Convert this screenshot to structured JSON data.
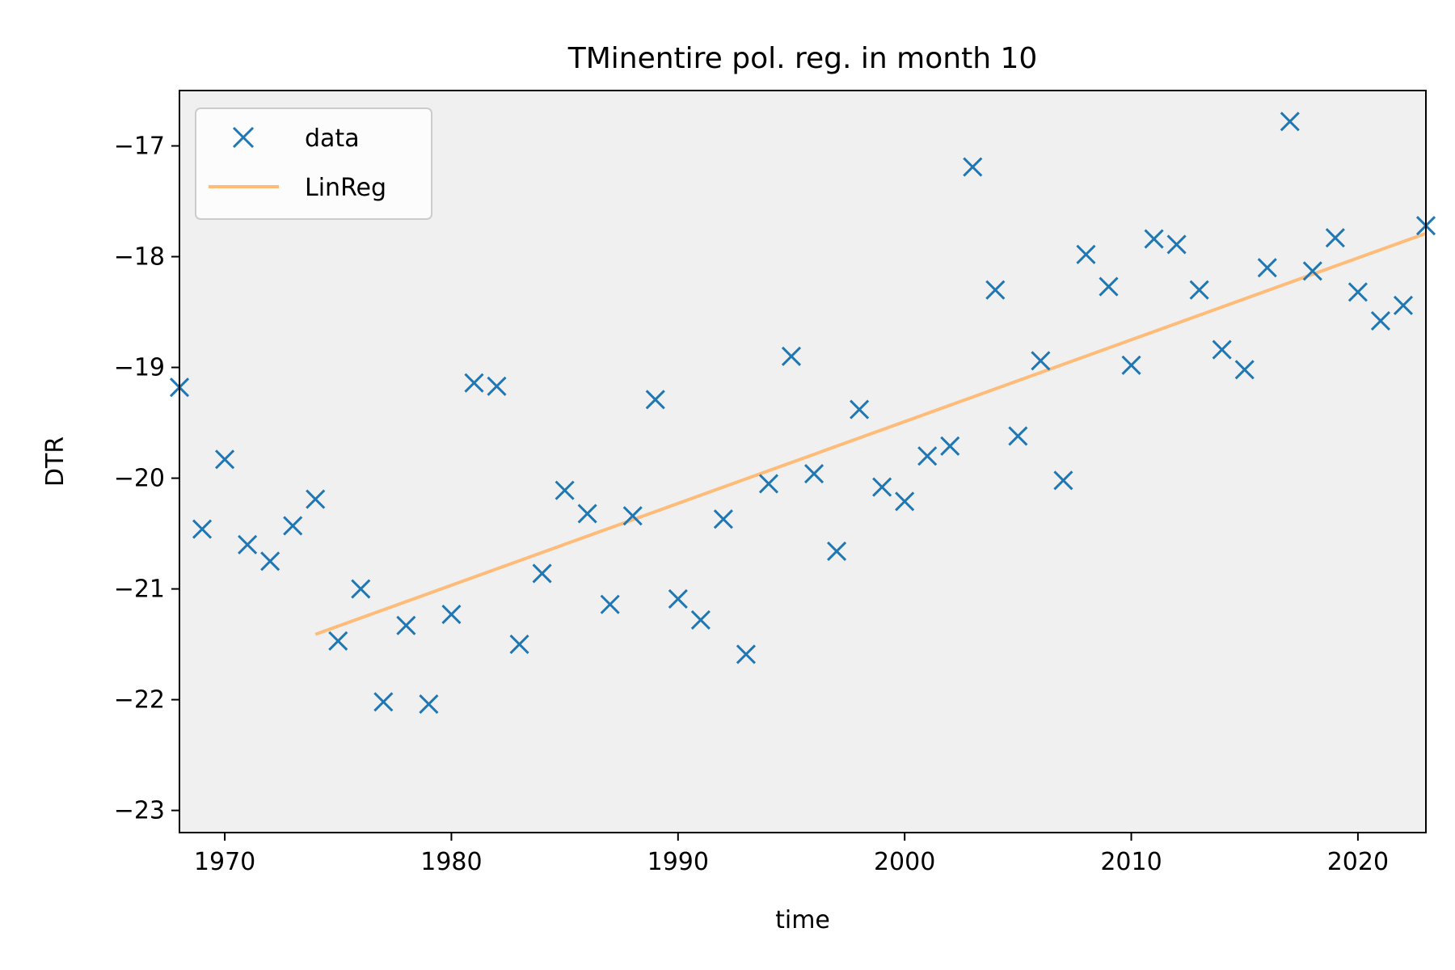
{
  "chart_data": {
    "type": "scatter",
    "title": "TMinentire pol. reg. in month 10",
    "xlabel": "time",
    "ylabel": "DTR",
    "xlim": [
      1968,
      2023
    ],
    "ylim": [
      -23.2,
      -16.5
    ],
    "xticks": [
      1970,
      1980,
      1990,
      2000,
      2010,
      2020
    ],
    "yticks": [
      -23,
      -22,
      -21,
      -20,
      -19,
      -18,
      -17
    ],
    "ytick_labels": [
      "−23",
      "−22",
      "−21",
      "−20",
      "−19",
      "−18",
      "−17"
    ],
    "grid": false,
    "background": "#f0f0f0",
    "legend": {
      "position": "top-left",
      "entries": [
        "data",
        "LinReg"
      ]
    },
    "series": [
      {
        "name": "data",
        "marker": "x",
        "color": "#1f77b4",
        "x": [
          1968,
          1969,
          1970,
          1971,
          1972,
          1973,
          1974,
          1975,
          1976,
          1977,
          1978,
          1979,
          1980,
          1981,
          1982,
          1983,
          1984,
          1985,
          1986,
          1987,
          1988,
          1989,
          1990,
          1991,
          1992,
          1993,
          1994,
          1995,
          1996,
          1997,
          1998,
          1999,
          2000,
          2001,
          2002,
          2003,
          2004,
          2005,
          2006,
          2007,
          2008,
          2009,
          2010,
          2011,
          2012,
          2013,
          2014,
          2015,
          2016,
          2017,
          2018,
          2019,
          2020,
          2021,
          2022,
          2023
        ],
        "y": [
          -19.18,
          -20.46,
          -19.83,
          -20.6,
          -20.75,
          -20.43,
          -20.19,
          -21.47,
          -21.0,
          -22.02,
          -21.33,
          -22.04,
          -21.23,
          -19.14,
          -19.17,
          -21.5,
          -20.86,
          -20.11,
          -20.32,
          -21.14,
          -20.34,
          -19.29,
          -21.09,
          -21.28,
          -20.37,
          -21.59,
          -20.05,
          -18.9,
          -19.96,
          -20.66,
          -19.38,
          -20.08,
          -20.21,
          -19.8,
          -19.71,
          -17.19,
          -18.3,
          -19.62,
          -18.94,
          -20.02,
          -17.98,
          -18.27,
          -18.98,
          -17.84,
          -17.89,
          -18.3,
          -18.84,
          -19.02,
          -18.1,
          -16.78,
          -18.13,
          -17.83,
          -18.32,
          -18.58,
          -18.44,
          -17.72
        ]
      },
      {
        "name": "LinReg",
        "type": "line",
        "color": "#ffbb78",
        "x": [
          1974,
          2023
        ],
        "y": [
          -21.41,
          -17.79
        ]
      }
    ]
  }
}
